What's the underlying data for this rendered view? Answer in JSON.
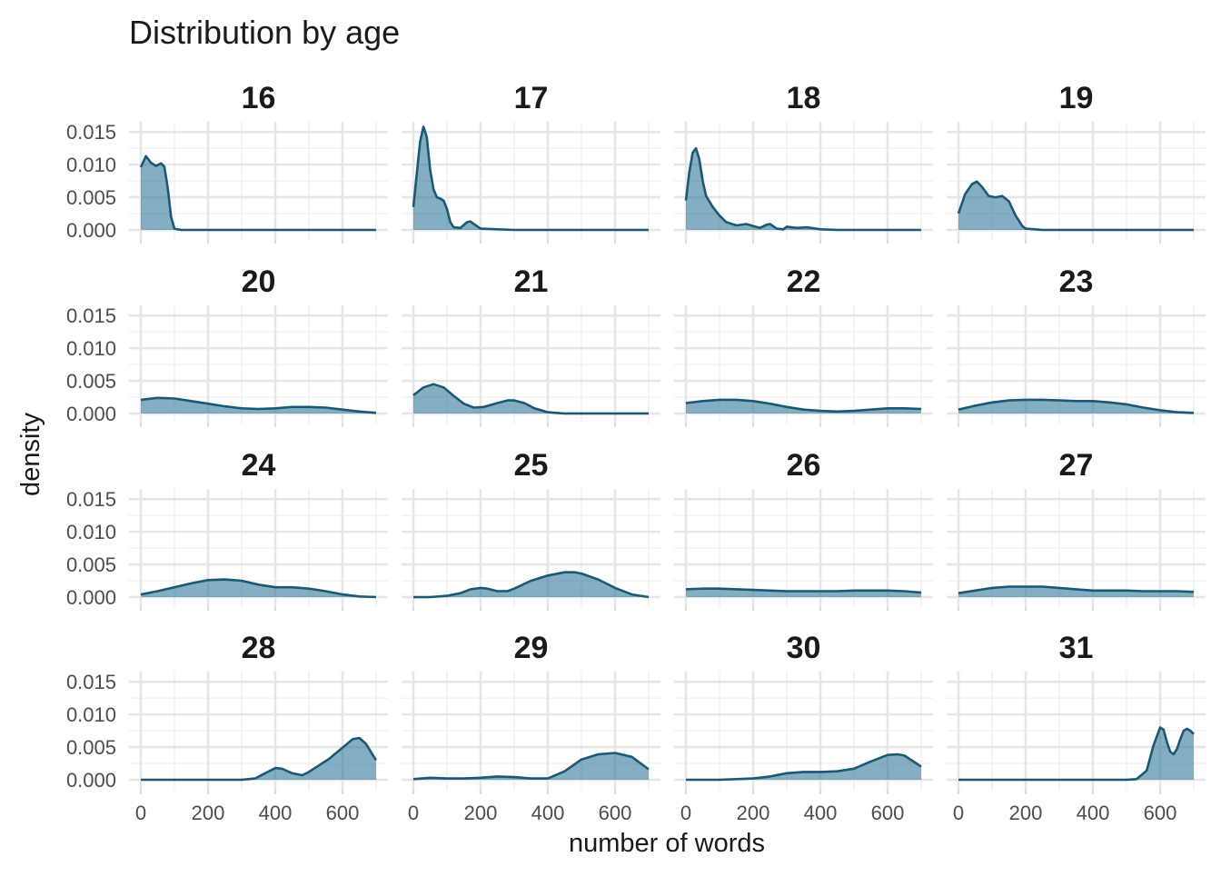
{
  "chart_data": {
    "type": "area",
    "title": "Distribution by age",
    "xlabel": "number of words",
    "ylabel": "density",
    "xlim": [
      0,
      700
    ],
    "ylim": [
      0,
      0.016
    ],
    "x_ticks": [
      0,
      200,
      400,
      600
    ],
    "x_tick_labels": [
      "0",
      "200",
      "400",
      "600"
    ],
    "y_ticks": [
      0,
      0.005,
      0.01,
      0.015
    ],
    "y_tick_labels": [
      "0.000",
      "0.005",
      "0.010",
      "0.015"
    ],
    "grid": true,
    "colors": {
      "fill": "#1f6e8f",
      "line": "#1c5775"
    },
    "panels": [
      {
        "label": "16",
        "x": [
          0,
          15,
          30,
          45,
          60,
          70,
          80,
          90,
          100,
          120,
          200,
          400,
          700
        ],
        "y": [
          0.0096,
          0.0113,
          0.0103,
          0.0098,
          0.0102,
          0.0097,
          0.0065,
          0.002,
          0.0002,
          0,
          0,
          0,
          0
        ]
      },
      {
        "label": "17",
        "x": [
          0,
          10,
          20,
          30,
          40,
          50,
          60,
          70,
          80,
          90,
          100,
          110,
          120,
          140,
          160,
          170,
          180,
          200,
          300,
          700
        ],
        "y": [
          0.0035,
          0.0085,
          0.0135,
          0.0158,
          0.0142,
          0.0092,
          0.0062,
          0.005,
          0.0048,
          0.0045,
          0.0032,
          0.0012,
          0.0004,
          0.0003,
          0.0012,
          0.0013,
          0.0009,
          0.0002,
          0,
          0
        ]
      },
      {
        "label": "18",
        "x": [
          0,
          10,
          20,
          30,
          40,
          50,
          60,
          80,
          100,
          120,
          150,
          180,
          200,
          220,
          240,
          250,
          270,
          290,
          300,
          330,
          360,
          400,
          450,
          700
        ],
        "y": [
          0.0045,
          0.0088,
          0.0118,
          0.0125,
          0.0108,
          0.0075,
          0.0052,
          0.0035,
          0.0022,
          0.0012,
          0.0007,
          0.0009,
          0.0006,
          0.0003,
          0.0008,
          0.0009,
          0.0002,
          0.0001,
          0.0005,
          0.0003,
          0.0004,
          0.0001,
          0,
          0
        ]
      },
      {
        "label": "19",
        "x": [
          0,
          20,
          40,
          55,
          70,
          90,
          110,
          130,
          150,
          170,
          190,
          200,
          250,
          700
        ],
        "y": [
          0.0025,
          0.0055,
          0.007,
          0.0074,
          0.0066,
          0.0052,
          0.005,
          0.0052,
          0.0044,
          0.0022,
          0.0006,
          0.0002,
          0,
          0
        ]
      },
      {
        "label": "20",
        "x": [
          0,
          50,
          100,
          150,
          200,
          250,
          300,
          350,
          400,
          450,
          500,
          550,
          600,
          650,
          700
        ],
        "y": [
          0.0021,
          0.0024,
          0.0023,
          0.0019,
          0.0015,
          0.0011,
          0.0008,
          0.0007,
          0.0008,
          0.001,
          0.001,
          0.0009,
          0.0006,
          0.0003,
          0.0001
        ]
      },
      {
        "label": "21",
        "x": [
          0,
          30,
          60,
          90,
          120,
          150,
          180,
          210,
          250,
          280,
          300,
          330,
          360,
          400,
          450,
          500,
          700
        ],
        "y": [
          0.0028,
          0.004,
          0.0045,
          0.004,
          0.0027,
          0.0015,
          0.0009,
          0.001,
          0.0016,
          0.002,
          0.002,
          0.0016,
          0.0008,
          0.0002,
          0,
          0,
          0
        ]
      },
      {
        "label": "22",
        "x": [
          0,
          50,
          100,
          150,
          200,
          250,
          300,
          350,
          400,
          450,
          500,
          550,
          600,
          650,
          700
        ],
        "y": [
          0.0016,
          0.0019,
          0.0021,
          0.0021,
          0.0019,
          0.0015,
          0.001,
          0.0006,
          0.0004,
          0.0003,
          0.0004,
          0.0006,
          0.0008,
          0.0008,
          0.0007
        ]
      },
      {
        "label": "23",
        "x": [
          0,
          50,
          100,
          150,
          200,
          250,
          300,
          350,
          400,
          450,
          500,
          550,
          600,
          650,
          700
        ],
        "y": [
          0.0006,
          0.0012,
          0.0017,
          0.002,
          0.0021,
          0.0021,
          0.002,
          0.0019,
          0.0019,
          0.0017,
          0.0014,
          0.0009,
          0.0005,
          0.0002,
          0.0001
        ]
      },
      {
        "label": "24",
        "x": [
          0,
          50,
          100,
          150,
          200,
          250,
          300,
          350,
          400,
          450,
          500,
          550,
          600,
          650,
          700
        ],
        "y": [
          0.0004,
          0.0009,
          0.0015,
          0.0021,
          0.0026,
          0.0027,
          0.0025,
          0.0019,
          0.0015,
          0.0015,
          0.0013,
          0.0009,
          0.0004,
          0.0001,
          0
        ]
      },
      {
        "label": "25",
        "x": [
          0,
          50,
          100,
          140,
          170,
          200,
          220,
          250,
          280,
          300,
          350,
          400,
          450,
          480,
          500,
          550,
          600,
          650,
          700
        ],
        "y": [
          0,
          0,
          0.0002,
          0.0006,
          0.0012,
          0.0014,
          0.0013,
          0.0009,
          0.0009,
          0.0013,
          0.0025,
          0.0033,
          0.0038,
          0.0038,
          0.0036,
          0.0027,
          0.0014,
          0.0004,
          0
        ]
      },
      {
        "label": "26",
        "x": [
          0,
          50,
          100,
          150,
          200,
          250,
          300,
          350,
          400,
          450,
          500,
          550,
          600,
          650,
          700
        ],
        "y": [
          0.0012,
          0.0013,
          0.0013,
          0.0012,
          0.0011,
          0.001,
          0.0009,
          0.0009,
          0.0009,
          0.0009,
          0.001,
          0.001,
          0.001,
          0.0009,
          0.0007
        ]
      },
      {
        "label": "27",
        "x": [
          0,
          50,
          100,
          150,
          200,
          250,
          300,
          350,
          400,
          450,
          500,
          550,
          600,
          650,
          700
        ],
        "y": [
          0.0006,
          0.001,
          0.0014,
          0.0016,
          0.0016,
          0.0016,
          0.0014,
          0.0012,
          0.001,
          0.001,
          0.001,
          0.0009,
          0.0009,
          0.0009,
          0.0008
        ]
      },
      {
        "label": "28",
        "x": [
          0,
          200,
          300,
          340,
          370,
          400,
          420,
          450,
          480,
          500,
          530,
          560,
          600,
          630,
          650,
          670,
          690,
          700
        ],
        "y": [
          0,
          0,
          0,
          0.0002,
          0.001,
          0.0018,
          0.0017,
          0.001,
          0.0007,
          0.0012,
          0.0022,
          0.0032,
          0.0049,
          0.0062,
          0.0064,
          0.0055,
          0.0038,
          0.003
        ]
      },
      {
        "label": "29",
        "x": [
          0,
          50,
          100,
          150,
          200,
          250,
          300,
          350,
          400,
          450,
          500,
          550,
          600,
          650,
          700
        ],
        "y": [
          0.0001,
          0.0003,
          0.0002,
          0.0002,
          0.0003,
          0.0005,
          0.0004,
          0.0002,
          0.0002,
          0.0013,
          0.0031,
          0.0039,
          0.0041,
          0.0035,
          0.0016
        ]
      },
      {
        "label": "30",
        "x": [
          0,
          100,
          200,
          250,
          300,
          350,
          400,
          450,
          500,
          550,
          600,
          630,
          650,
          680,
          700
        ],
        "y": [
          0,
          0,
          0.0002,
          0.0005,
          0.001,
          0.0012,
          0.0012,
          0.0013,
          0.0017,
          0.0028,
          0.0038,
          0.0039,
          0.0037,
          0.0027,
          0.002
        ]
      },
      {
        "label": "31",
        "x": [
          0,
          500,
          530,
          560,
          580,
          600,
          610,
          620,
          630,
          640,
          650,
          660,
          670,
          680,
          690,
          700
        ],
        "y": [
          0,
          0,
          0.0001,
          0.0014,
          0.0052,
          0.008,
          0.0077,
          0.0058,
          0.0043,
          0.0039,
          0.0047,
          0.0062,
          0.0075,
          0.0078,
          0.0075,
          0.007
        ]
      }
    ]
  }
}
